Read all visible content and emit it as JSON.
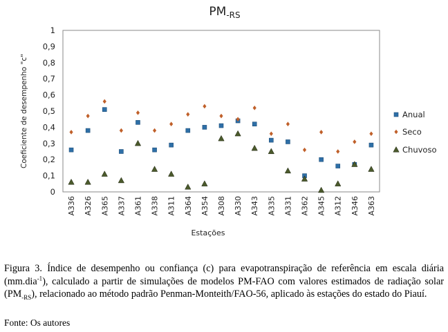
{
  "chart_data": {
    "type": "scatter",
    "title_main": "PM",
    "title_sub": "-RS",
    "xlabel": "Estações",
    "ylabel": "Coeficiente de desempenho \"c\"",
    "ylim": [
      0,
      1
    ],
    "yticks": [
      "0",
      "0,1",
      "0,2",
      "0,3",
      "0,4",
      "0,5",
      "0,6",
      "0,7",
      "0,8",
      "0,9",
      "1"
    ],
    "categories": [
      "A336",
      "A326",
      "A365",
      "A337",
      "A361",
      "A338",
      "A311",
      "A364",
      "A354",
      "A308",
      "A330",
      "A343",
      "A335",
      "A331",
      "A362",
      "A345",
      "A312",
      "A346",
      "A363"
    ],
    "grid": false,
    "legend_position": "right",
    "series": [
      {
        "name": "Anual",
        "marker": "square",
        "color": "#2e6fa7",
        "values": [
          0.26,
          0.38,
          0.51,
          0.25,
          0.43,
          0.26,
          0.29,
          0.38,
          0.4,
          0.41,
          0.44,
          0.42,
          0.32,
          0.31,
          0.1,
          0.2,
          0.16,
          0.17,
          0.29
        ]
      },
      {
        "name": "Seco",
        "marker": "diamond",
        "color": "#c0602a",
        "values": [
          0.37,
          0.47,
          0.56,
          0.38,
          0.49,
          0.38,
          0.42,
          0.48,
          0.53,
          0.47,
          0.45,
          0.52,
          0.36,
          0.42,
          0.26,
          0.37,
          0.25,
          0.31,
          0.36
        ]
      },
      {
        "name": "Chuvoso",
        "marker": "triangle",
        "color": "#4b5a2c",
        "values": [
          0.06,
          0.06,
          0.11,
          0.07,
          0.3,
          0.14,
          0.11,
          0.03,
          0.05,
          0.33,
          0.36,
          0.27,
          0.25,
          0.13,
          0.08,
          0.01,
          0.05,
          0.17,
          0.14
        ]
      }
    ]
  },
  "caption": {
    "label": "Figura 3.",
    "part1": "Índice de desempenho ou confiança (c) para evapotranspiração de referência em escala diária (mm.dia",
    "sup": "-1",
    "part2": "), calculado a partir de simulações de modelos PM-FAO com valores estimados de radiação solar (PM",
    "sub": "-RS",
    "part3": "), relacionado ao método padrão Penman-Monteith/FAO-56, aplicado às estações do estado do Piauí.",
    "source": "Fonte: Os autores"
  }
}
